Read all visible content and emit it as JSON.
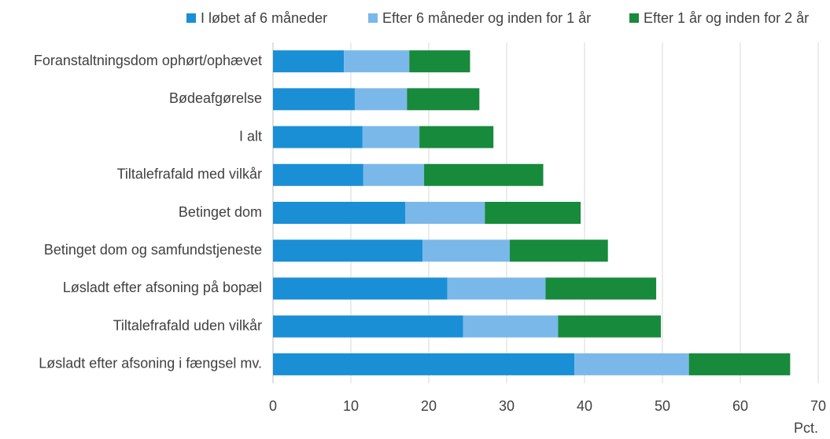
{
  "chart_data": {
    "type": "stacked_bar_horizontal",
    "categories": [
      "Foranstaltningsdom ophørt/ophævet",
      "Bødeafgørelse",
      "I alt",
      "Tiltalefrafald med vilkår",
      "Betinget dom",
      "Betinget dom og samfundstjeneste",
      "Løsladt efter afsoning på bopæl",
      "Tiltalefrafald uden vilkår",
      "Løsladt efter afsoning i fængsel mv."
    ],
    "series": [
      {
        "name": "I løbet af 6 måneder",
        "color": "#1a8fd6",
        "values": [
          9.1,
          10.5,
          11.5,
          11.6,
          17.0,
          19.2,
          22.4,
          24.4,
          38.7
        ]
      },
      {
        "name": "Efter 6 måneder og inden for 1 år",
        "color": "#7ab8ea",
        "values": [
          8.4,
          6.7,
          7.3,
          7.8,
          10.2,
          11.2,
          12.6,
          12.2,
          14.7
        ]
      },
      {
        "name": "Efter 1 år og inden for 2 år",
        "color": "#178a3c",
        "values": [
          7.8,
          9.3,
          9.5,
          15.3,
          12.3,
          12.6,
          14.2,
          13.2,
          13.0
        ]
      }
    ],
    "x_label": "Pct.",
    "xlim": [
      0,
      70
    ],
    "xticks": [
      0,
      10,
      20,
      30,
      40,
      50,
      60,
      70
    ],
    "grid": true,
    "legend": "top"
  }
}
